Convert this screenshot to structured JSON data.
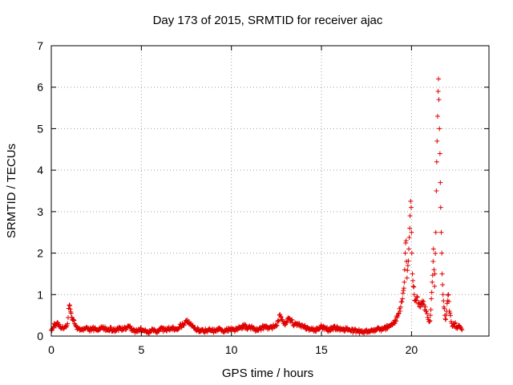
{
  "chart_data": {
    "type": "scatter",
    "title": "Day 173 of 2015, SRMTID for receiver ajac",
    "xlabel": "GPS time / hours",
    "ylabel": "SRMTID / TECUs",
    "xlim": [
      0,
      24.3
    ],
    "ylim": [
      0,
      7
    ],
    "xticks": [
      0,
      5,
      10,
      15,
      20
    ],
    "yticks": [
      0,
      1,
      2,
      3,
      4,
      5,
      6,
      7
    ],
    "grid": true,
    "marker": "+",
    "color": "#e00000",
    "series": [
      {
        "name": "SRMTID",
        "points": [
          [
            0.0,
            0.15
          ],
          [
            0.1,
            0.22
          ],
          [
            0.2,
            0.28
          ],
          [
            0.3,
            0.3
          ],
          [
            0.4,
            0.25
          ],
          [
            0.5,
            0.22
          ],
          [
            0.6,
            0.2
          ],
          [
            0.7,
            0.18
          ],
          [
            0.8,
            0.22
          ],
          [
            0.9,
            0.3
          ],
          [
            1.0,
            0.75
          ],
          [
            1.05,
            0.65
          ],
          [
            1.1,
            0.55
          ],
          [
            1.15,
            0.45
          ],
          [
            1.2,
            0.38
          ],
          [
            1.3,
            0.3
          ],
          [
            1.4,
            0.22
          ],
          [
            1.5,
            0.18
          ],
          [
            1.7,
            0.15
          ],
          [
            1.9,
            0.18
          ],
          [
            2.1,
            0.15
          ],
          [
            2.3,
            0.18
          ],
          [
            2.5,
            0.14
          ],
          [
            2.7,
            0.16
          ],
          [
            2.9,
            0.2
          ],
          [
            3.1,
            0.15
          ],
          [
            3.3,
            0.17
          ],
          [
            3.5,
            0.14
          ],
          [
            3.7,
            0.18
          ],
          [
            3.9,
            0.15
          ],
          [
            4.1,
            0.2
          ],
          [
            4.3,
            0.24
          ],
          [
            4.5,
            0.14
          ],
          [
            4.7,
            0.12
          ],
          [
            4.9,
            0.16
          ],
          [
            5.1,
            0.13
          ],
          [
            5.3,
            0.1
          ],
          [
            5.5,
            0.12
          ],
          [
            5.7,
            0.15
          ],
          [
            5.9,
            0.12
          ],
          [
            6.1,
            0.18
          ],
          [
            6.3,
            0.14
          ],
          [
            6.5,
            0.17
          ],
          [
            6.7,
            0.2
          ],
          [
            6.9,
            0.17
          ],
          [
            7.1,
            0.22
          ],
          [
            7.3,
            0.28
          ],
          [
            7.4,
            0.32
          ],
          [
            7.5,
            0.38
          ],
          [
            7.6,
            0.34
          ],
          [
            7.7,
            0.28
          ],
          [
            7.9,
            0.2
          ],
          [
            8.1,
            0.16
          ],
          [
            8.3,
            0.14
          ],
          [
            8.5,
            0.12
          ],
          [
            8.7,
            0.15
          ],
          [
            8.9,
            0.13
          ],
          [
            9.1,
            0.12
          ],
          [
            9.3,
            0.16
          ],
          [
            9.5,
            0.14
          ],
          [
            9.7,
            0.13
          ],
          [
            9.9,
            0.17
          ],
          [
            10.1,
            0.15
          ],
          [
            10.3,
            0.16
          ],
          [
            10.5,
            0.2
          ],
          [
            10.7,
            0.25
          ],
          [
            10.9,
            0.18
          ],
          [
            11.1,
            0.22
          ],
          [
            11.3,
            0.16
          ],
          [
            11.5,
            0.14
          ],
          [
            11.7,
            0.2
          ],
          [
            11.9,
            0.24
          ],
          [
            12.1,
            0.18
          ],
          [
            12.3,
            0.22
          ],
          [
            12.5,
            0.26
          ],
          [
            12.6,
            0.35
          ],
          [
            12.7,
            0.52
          ],
          [
            12.8,
            0.4
          ],
          [
            12.9,
            0.3
          ],
          [
            13.0,
            0.28
          ],
          [
            13.1,
            0.35
          ],
          [
            13.2,
            0.42
          ],
          [
            13.3,
            0.38
          ],
          [
            13.4,
            0.32
          ],
          [
            13.5,
            0.28
          ],
          [
            13.6,
            0.3
          ],
          [
            13.8,
            0.25
          ],
          [
            14.0,
            0.22
          ],
          [
            14.2,
            0.2
          ],
          [
            14.4,
            0.16
          ],
          [
            14.6,
            0.14
          ],
          [
            14.8,
            0.18
          ],
          [
            15.0,
            0.22
          ],
          [
            15.2,
            0.2
          ],
          [
            15.4,
            0.15
          ],
          [
            15.6,
            0.18
          ],
          [
            15.8,
            0.2
          ],
          [
            16.0,
            0.18
          ],
          [
            16.2,
            0.15
          ],
          [
            16.4,
            0.18
          ],
          [
            16.6,
            0.14
          ],
          [
            16.8,
            0.12
          ],
          [
            17.0,
            0.13
          ],
          [
            17.2,
            0.1
          ],
          [
            17.4,
            0.12
          ],
          [
            17.6,
            0.1
          ],
          [
            17.8,
            0.13
          ],
          [
            18.0,
            0.15
          ],
          [
            18.2,
            0.18
          ],
          [
            18.4,
            0.16
          ],
          [
            18.6,
            0.2
          ],
          [
            18.8,
            0.25
          ],
          [
            19.0,
            0.3
          ],
          [
            19.2,
            0.45
          ],
          [
            19.3,
            0.55
          ],
          [
            19.4,
            0.7
          ],
          [
            19.5,
            0.9
          ],
          [
            19.55,
            1.1
          ],
          [
            19.6,
            1.3
          ],
          [
            19.62,
            1.6
          ],
          [
            19.65,
            2.0
          ],
          [
            19.7,
            2.3
          ],
          [
            19.72,
            1.8
          ],
          [
            19.75,
            1.4
          ],
          [
            19.8,
            1.7
          ],
          [
            19.85,
            2.1
          ],
          [
            19.9,
            2.6
          ],
          [
            19.92,
            2.9
          ],
          [
            19.95,
            3.25
          ],
          [
            19.98,
            3.1
          ],
          [
            20.0,
            2.5
          ],
          [
            20.02,
            2.0
          ],
          [
            20.05,
            1.5
          ],
          [
            20.1,
            1.2
          ],
          [
            20.15,
            1.0
          ],
          [
            20.2,
            0.85
          ],
          [
            20.3,
            0.95
          ],
          [
            20.4,
            0.8
          ],
          [
            20.5,
            0.7
          ],
          [
            20.6,
            0.85
          ],
          [
            20.7,
            0.75
          ],
          [
            20.8,
            0.6
          ],
          [
            20.9,
            0.45
          ],
          [
            21.0,
            0.35
          ],
          [
            21.05,
            0.5
          ],
          [
            21.1,
            0.9
          ],
          [
            21.15,
            1.3
          ],
          [
            21.2,
            1.8
          ],
          [
            21.22,
            2.1
          ],
          [
            21.25,
            1.6
          ],
          [
            21.28,
            1.2
          ],
          [
            21.3,
            1.5
          ],
          [
            21.35,
            2.5
          ],
          [
            21.38,
            3.5
          ],
          [
            21.4,
            4.2
          ],
          [
            21.42,
            4.7
          ],
          [
            21.45,
            5.3
          ],
          [
            21.48,
            5.9
          ],
          [
            21.5,
            6.2
          ],
          [
            21.52,
            5.7
          ],
          [
            21.55,
            5.0
          ],
          [
            21.58,
            4.4
          ],
          [
            21.6,
            3.7
          ],
          [
            21.62,
            3.1
          ],
          [
            21.65,
            2.5
          ],
          [
            21.68,
            2.0
          ],
          [
            21.7,
            1.5
          ],
          [
            21.75,
            1.0
          ],
          [
            21.8,
            0.7
          ],
          [
            21.85,
            0.5
          ],
          [
            21.9,
            0.4
          ],
          [
            21.95,
            0.6
          ],
          [
            22.0,
            0.85
          ],
          [
            22.05,
            1.0
          ],
          [
            22.1,
            0.6
          ],
          [
            22.2,
            0.35
          ],
          [
            22.3,
            0.25
          ],
          [
            22.4,
            0.3
          ],
          [
            22.5,
            0.22
          ],
          [
            22.6,
            0.25
          ],
          [
            22.7,
            0.2
          ],
          [
            22.8,
            0.15
          ]
        ]
      }
    ]
  }
}
